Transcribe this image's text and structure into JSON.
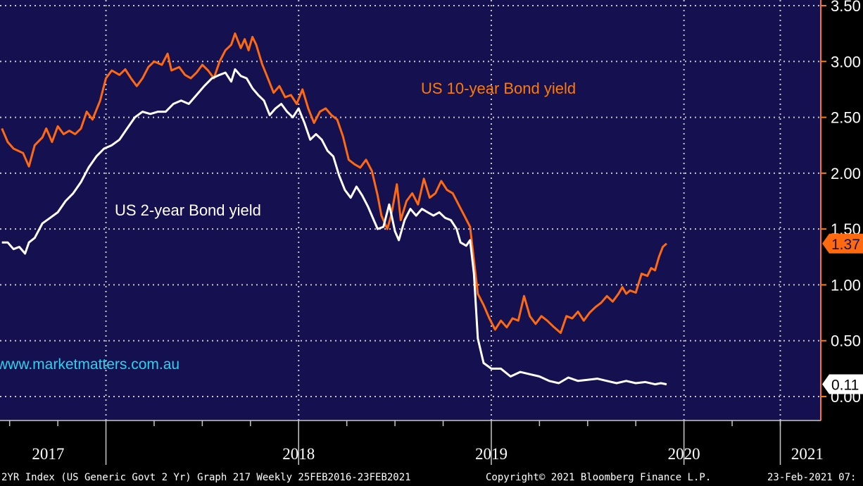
{
  "chart_data": {
    "type": "line",
    "y_axis": {
      "range": [
        -0.05,
        3.6
      ],
      "ticks": [
        0.0,
        0.5,
        1.0,
        1.5,
        2.0,
        2.5,
        3.0,
        3.5
      ],
      "tick_labels": [
        "0.00",
        "0.50",
        "1.00",
        "1.50",
        "2.00",
        "2.50",
        "3.00",
        "3.50"
      ],
      "side": "right"
    },
    "x_axis": {
      "range": [
        2016.95,
        2021.21
      ],
      "year_labels": [
        {
          "label": "2017",
          "at": 2017.2
        },
        {
          "label": "2018",
          "at": 2018.5
        },
        {
          "label": "2019",
          "at": 2019.5
        },
        {
          "label": "2020",
          "at": 2020.5
        },
        {
          "label": "2021",
          "at": 2021.14
        }
      ],
      "year_dividers": [
        2017.5,
        2018.5,
        2019.5,
        2020.5
      ]
    },
    "grid": true,
    "series": [
      {
        "name": "US 10-year Bond yield",
        "color": "#ff6a10",
        "last_value_label": "1.37",
        "points": [
          [
            2016.96,
            2.4
          ],
          [
            2016.99,
            2.28
          ],
          [
            2017.02,
            2.22
          ],
          [
            2017.07,
            2.18
          ],
          [
            2017.1,
            2.06
          ],
          [
            2017.13,
            2.25
          ],
          [
            2017.17,
            2.32
          ],
          [
            2017.19,
            2.4
          ],
          [
            2017.22,
            2.28
          ],
          [
            2017.25,
            2.42
          ],
          [
            2017.28,
            2.35
          ],
          [
            2017.31,
            2.38
          ],
          [
            2017.34,
            2.35
          ],
          [
            2017.37,
            2.4
          ],
          [
            2017.4,
            2.55
          ],
          [
            2017.43,
            2.48
          ],
          [
            2017.47,
            2.65
          ],
          [
            2017.5,
            2.85
          ],
          [
            2017.53,
            2.92
          ],
          [
            2017.57,
            2.88
          ],
          [
            2017.6,
            2.93
          ],
          [
            2017.63,
            2.85
          ],
          [
            2017.66,
            2.78
          ],
          [
            2017.69,
            2.85
          ],
          [
            2017.72,
            2.95
          ],
          [
            2017.75,
            3.0
          ],
          [
            2017.79,
            2.97
          ],
          [
            2017.82,
            3.07
          ],
          [
            2017.84,
            2.92
          ],
          [
            2017.88,
            2.95
          ],
          [
            2017.91,
            2.88
          ],
          [
            2017.94,
            2.85
          ],
          [
            2017.97,
            2.9
          ],
          [
            2018.0,
            2.97
          ],
          [
            2018.03,
            2.92
          ],
          [
            2018.06,
            2.85
          ],
          [
            2018.09,
            3.0
          ],
          [
            2018.12,
            3.1
          ],
          [
            2018.15,
            3.15
          ],
          [
            2018.17,
            3.25
          ],
          [
            2018.2,
            3.12
          ],
          [
            2018.22,
            3.2
          ],
          [
            2018.24,
            3.1
          ],
          [
            2018.26,
            3.22
          ],
          [
            2018.28,
            3.15
          ],
          [
            2018.31,
            2.98
          ],
          [
            2018.34,
            2.85
          ],
          [
            2018.37,
            2.72
          ],
          [
            2018.4,
            2.78
          ],
          [
            2018.43,
            2.68
          ],
          [
            2018.46,
            2.7
          ],
          [
            2018.49,
            2.62
          ],
          [
            2018.52,
            2.75
          ],
          [
            2018.55,
            2.58
          ],
          [
            2018.58,
            2.45
          ],
          [
            2018.61,
            2.55
          ],
          [
            2018.64,
            2.58
          ],
          [
            2018.67,
            2.52
          ],
          [
            2018.7,
            2.48
          ],
          [
            2018.73,
            2.33
          ],
          [
            2018.76,
            2.12
          ],
          [
            2018.79,
            2.08
          ],
          [
            2018.82,
            2.05
          ],
          [
            2018.85,
            2.12
          ],
          [
            2018.88,
            2.02
          ],
          [
            2018.91,
            1.8
          ],
          [
            2018.93,
            1.62
          ],
          [
            2018.96,
            1.5
          ],
          [
            2018.98,
            1.62
          ],
          [
            2019.01,
            1.9
          ],
          [
            2019.03,
            1.58
          ],
          [
            2019.06,
            1.75
          ],
          [
            2019.09,
            1.82
          ],
          [
            2019.12,
            1.72
          ],
          [
            2019.15,
            1.95
          ],
          [
            2019.18,
            1.78
          ],
          [
            2019.21,
            1.82
          ],
          [
            2019.24,
            1.93
          ],
          [
            2019.27,
            1.85
          ],
          [
            2019.3,
            1.82
          ],
          [
            2019.33,
            1.72
          ],
          [
            2019.36,
            1.62
          ],
          [
            2019.39,
            1.52
          ],
          [
            2019.41,
            1.22
          ],
          [
            2019.43,
            0.92
          ],
          [
            2019.46,
            0.82
          ],
          [
            2019.49,
            0.7
          ],
          [
            2019.52,
            0.6
          ],
          [
            2019.55,
            0.68
          ],
          [
            2019.58,
            0.62
          ],
          [
            2019.61,
            0.7
          ],
          [
            2019.64,
            0.68
          ],
          [
            2019.67,
            0.9
          ],
          [
            2019.7,
            0.72
          ],
          [
            2019.73,
            0.65
          ],
          [
            2019.76,
            0.72
          ],
          [
            2019.79,
            0.68
          ],
          [
            2019.82,
            0.63
          ],
          [
            2019.86,
            0.57
          ],
          [
            2019.89,
            0.72
          ],
          [
            2019.92,
            0.7
          ],
          [
            2019.95,
            0.76
          ],
          [
            2019.98,
            0.68
          ],
          [
            2020.01,
            0.75
          ],
          [
            2020.04,
            0.8
          ],
          [
            2020.07,
            0.84
          ],
          [
            2020.1,
            0.9
          ],
          [
            2020.13,
            0.85
          ],
          [
            2020.16,
            0.92
          ],
          [
            2020.18,
            0.98
          ],
          [
            2020.2,
            0.92
          ],
          [
            2020.22,
            0.95
          ],
          [
            2020.25,
            0.93
          ],
          [
            2020.28,
            1.1
          ],
          [
            2020.31,
            1.08
          ],
          [
            2020.33,
            1.15
          ],
          [
            2020.35,
            1.13
          ],
          [
            2020.37,
            1.25
          ],
          [
            2020.39,
            1.34
          ],
          [
            2020.41,
            1.37
          ]
        ]
      },
      {
        "name": "US 2-year Bond yield",
        "color": "#ffffff",
        "last_value_label": "0.11",
        "points": [
          [
            2016.96,
            1.38
          ],
          [
            2016.99,
            1.38
          ],
          [
            2017.02,
            1.32
          ],
          [
            2017.05,
            1.34
          ],
          [
            2017.08,
            1.28
          ],
          [
            2017.1,
            1.38
          ],
          [
            2017.13,
            1.42
          ],
          [
            2017.17,
            1.55
          ],
          [
            2017.21,
            1.6
          ],
          [
            2017.25,
            1.65
          ],
          [
            2017.29,
            1.75
          ],
          [
            2017.33,
            1.82
          ],
          [
            2017.37,
            1.92
          ],
          [
            2017.41,
            2.05
          ],
          [
            2017.45,
            2.15
          ],
          [
            2017.49,
            2.22
          ],
          [
            2017.53,
            2.25
          ],
          [
            2017.57,
            2.3
          ],
          [
            2017.61,
            2.4
          ],
          [
            2017.65,
            2.5
          ],
          [
            2017.69,
            2.55
          ],
          [
            2017.73,
            2.53
          ],
          [
            2017.77,
            2.55
          ],
          [
            2017.81,
            2.55
          ],
          [
            2017.85,
            2.62
          ],
          [
            2017.89,
            2.65
          ],
          [
            2017.93,
            2.62
          ],
          [
            2017.97,
            2.7
          ],
          [
            2018.01,
            2.78
          ],
          [
            2018.05,
            2.85
          ],
          [
            2018.09,
            2.88
          ],
          [
            2018.12,
            2.9
          ],
          [
            2018.15,
            2.82
          ],
          [
            2018.17,
            2.93
          ],
          [
            2018.2,
            2.87
          ],
          [
            2018.23,
            2.85
          ],
          [
            2018.26,
            2.76
          ],
          [
            2018.29,
            2.7
          ],
          [
            2018.32,
            2.65
          ],
          [
            2018.35,
            2.52
          ],
          [
            2018.38,
            2.58
          ],
          [
            2018.41,
            2.62
          ],
          [
            2018.44,
            2.55
          ],
          [
            2018.47,
            2.5
          ],
          [
            2018.5,
            2.58
          ],
          [
            2018.53,
            2.45
          ],
          [
            2018.56,
            2.3
          ],
          [
            2018.59,
            2.35
          ],
          [
            2018.62,
            2.3
          ],
          [
            2018.65,
            2.2
          ],
          [
            2018.68,
            2.15
          ],
          [
            2018.71,
            1.98
          ],
          [
            2018.74,
            1.85
          ],
          [
            2018.77,
            1.78
          ],
          [
            2018.8,
            1.88
          ],
          [
            2018.83,
            1.8
          ],
          [
            2018.86,
            1.7
          ],
          [
            2018.89,
            1.58
          ],
          [
            2018.91,
            1.5
          ],
          [
            2018.94,
            1.52
          ],
          [
            2018.97,
            1.72
          ],
          [
            2019.0,
            1.48
          ],
          [
            2019.02,
            1.4
          ],
          [
            2019.05,
            1.58
          ],
          [
            2019.08,
            1.68
          ],
          [
            2019.11,
            1.62
          ],
          [
            2019.14,
            1.68
          ],
          [
            2019.17,
            1.65
          ],
          [
            2019.2,
            1.62
          ],
          [
            2019.23,
            1.65
          ],
          [
            2019.26,
            1.6
          ],
          [
            2019.29,
            1.58
          ],
          [
            2019.32,
            1.5
          ],
          [
            2019.34,
            1.38
          ],
          [
            2019.37,
            1.35
          ],
          [
            2019.39,
            1.4
          ],
          [
            2019.41,
            1.1
          ],
          [
            2019.43,
            0.52
          ],
          [
            2019.46,
            0.3
          ],
          [
            2019.5,
            0.25
          ],
          [
            2019.55,
            0.25
          ],
          [
            2019.6,
            0.18
          ],
          [
            2019.65,
            0.22
          ],
          [
            2019.7,
            0.2
          ],
          [
            2019.75,
            0.18
          ],
          [
            2019.8,
            0.14
          ],
          [
            2019.85,
            0.12
          ],
          [
            2019.9,
            0.17
          ],
          [
            2019.95,
            0.14
          ],
          [
            2020.0,
            0.15
          ],
          [
            2020.05,
            0.16
          ],
          [
            2020.1,
            0.14
          ],
          [
            2020.15,
            0.12
          ],
          [
            2020.2,
            0.14
          ],
          [
            2020.25,
            0.12
          ],
          [
            2020.3,
            0.13
          ],
          [
            2020.35,
            0.11
          ],
          [
            2020.38,
            0.12
          ],
          [
            2020.41,
            0.11
          ]
        ]
      }
    ],
    "annotations": {
      "ten_year_label": "US 10-year Bond yield",
      "two_year_label": "US 2-year Bond yield",
      "watermark": "www.marketmatters.com.au"
    }
  },
  "footer": {
    "left": "2YR Index (US Generic Govt 2 Yr) Graph 217  Weekly 25FEB2016-23FEB2021",
    "center": "Copyright© 2021 Bloomberg Finance L.P.",
    "right": "23-Feb-2021 07:"
  },
  "colors": {
    "plot_background": "#15104f",
    "page_background": "#000000",
    "grid": "#c8c8c8",
    "ten_year": "#ff6a10",
    "two_year": "#ffffff",
    "watermark": "#29d3f0",
    "axis_accent": "#ff7a00"
  }
}
